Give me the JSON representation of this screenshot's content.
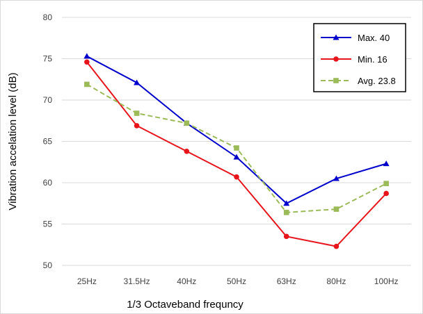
{
  "chart_data": {
    "type": "line",
    "title": "",
    "xlabel": "1/3 Octaveband frequncy",
    "ylabel": "Vibration accelation level (dB)",
    "categories": [
      "25Hz",
      "31.5Hz",
      "40Hz",
      "50Hz",
      "63Hz",
      "80Hz",
      "100Hz"
    ],
    "ylim": [
      50,
      80
    ],
    "yticks": [
      50,
      55,
      60,
      65,
      70,
      75,
      80
    ],
    "grid": true,
    "legend_position": "top-right",
    "series": [
      {
        "name": "Max. 40",
        "values": [
          75.3,
          72.1,
          67.2,
          63.1,
          57.5,
          60.5,
          62.3
        ],
        "color": "#0000CC",
        "marker": "triangle",
        "dash": "solid"
      },
      {
        "name": "Min. 16",
        "values": [
          74.6,
          66.9,
          63.8,
          60.7,
          53.5,
          52.3,
          58.7
        ],
        "color": "#E8141B",
        "marker": "circle",
        "dash": "solid"
      },
      {
        "name": "Avg. 23.8",
        "values": [
          71.9,
          68.4,
          67.2,
          64.2,
          56.4,
          56.8,
          59.9
        ],
        "color": "#9BBB59",
        "marker": "square",
        "dash": "dashed"
      }
    ]
  }
}
